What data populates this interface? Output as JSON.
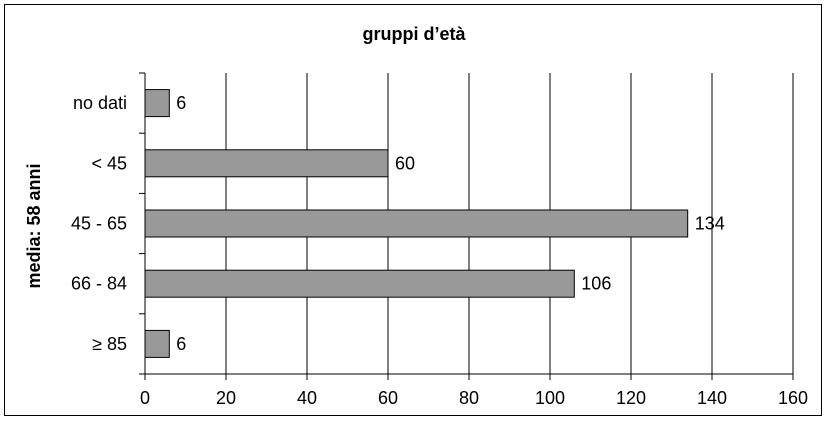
{
  "chart_data": {
    "type": "bar",
    "orientation": "horizontal",
    "title": "gruppi d’età",
    "ylabel": "media: 58 anni",
    "xlabel": "",
    "categories": [
      "no dati",
      "< 45",
      "45 - 65",
      "66 - 84",
      "≥ 85"
    ],
    "values": [
      6,
      60,
      134,
      106,
      6
    ],
    "data_labels": [
      "6",
      "60",
      "134",
      "106",
      "6"
    ],
    "xlim": [
      0,
      160
    ],
    "x_ticks": [
      0,
      20,
      40,
      60,
      80,
      100,
      120,
      140,
      160
    ],
    "x_tick_labels": [
      "0",
      "20",
      "40",
      "60",
      "80",
      "100",
      "120",
      "140",
      "160"
    ],
    "grid": "vertical",
    "legend": "none",
    "bar_color": "#999999",
    "bar_edge_color": "#000000"
  }
}
